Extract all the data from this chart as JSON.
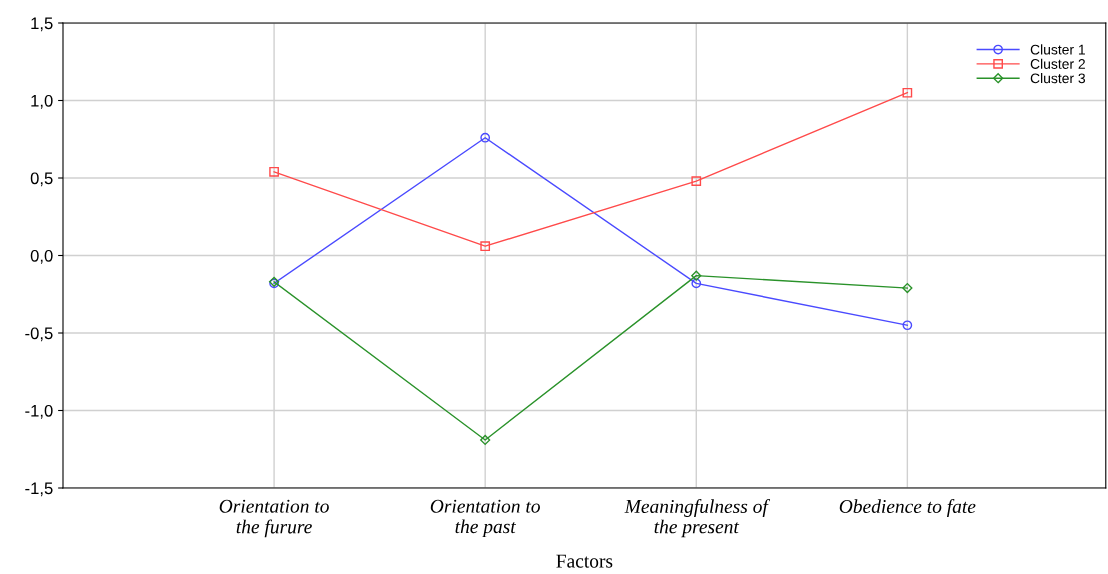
{
  "chart_data": {
    "type": "line",
    "xlabel": "Factors",
    "categories": [
      "Orientation to\nthe furure",
      "Orientation to\nthe past",
      "Meaningfulness of\nthe present",
      "Obedience to fate"
    ],
    "series": [
      {
        "name": "Cluster 1",
        "color": "#4a4aff",
        "marker": "circle",
        "values": [
          -0.18,
          0.76,
          -0.18,
          -0.45
        ]
      },
      {
        "name": "Cluster 2",
        "color": "#ff4a4a",
        "marker": "square",
        "values": [
          0.54,
          0.06,
          0.48,
          1.05
        ]
      },
      {
        "name": "Cluster 3",
        "color": "#2a922a",
        "marker": "diamond",
        "values": [
          -0.17,
          -1.19,
          -0.13,
          -0.21
        ]
      }
    ],
    "ylim": [
      -1.5,
      1.5
    ],
    "yticks": [
      {
        "value": -1.5,
        "label": "-1,5"
      },
      {
        "value": -1.0,
        "label": "-1,0"
      },
      {
        "value": -0.5,
        "label": "-0,5"
      },
      {
        "value": 0.0,
        "label": "0,0"
      },
      {
        "value": 0.5,
        "label": "0,5"
      },
      {
        "value": 1.0,
        "label": "1,0"
      },
      {
        "value": 1.5,
        "label": "1,5"
      }
    ],
    "grid": true,
    "legend": "top right",
    "line_style": "solid"
  }
}
